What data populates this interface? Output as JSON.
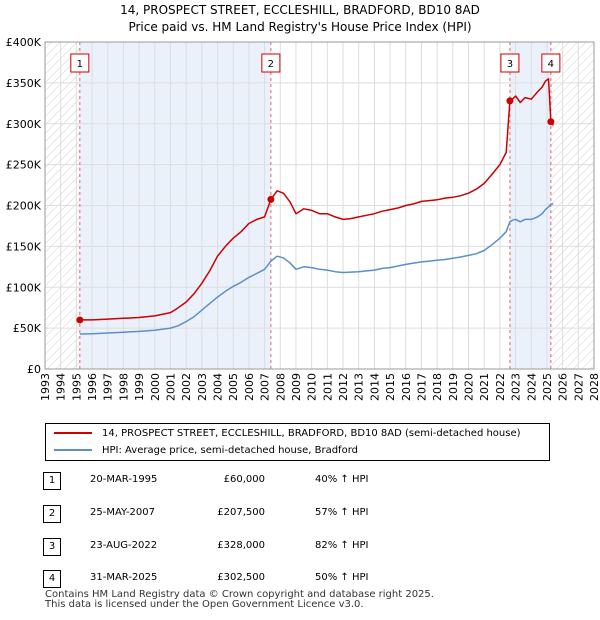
{
  "chart_data": {
    "type": "line",
    "title_line1": "14, PROSPECT STREET, ECCLESHILL, BRADFORD, BD10 8AD",
    "title_line2": "Price paid vs. HM Land Registry's House Price Index (HPI)",
    "xlim": [
      1993,
      2028
    ],
    "ylim": [
      0,
      400000
    ],
    "x_ticks": [
      1993,
      1994,
      1995,
      1996,
      1997,
      1998,
      1999,
      2000,
      2001,
      2002,
      2003,
      2004,
      2005,
      2006,
      2007,
      2008,
      2009,
      2010,
      2011,
      2012,
      2013,
      2014,
      2015,
      2016,
      2017,
      2018,
      2019,
      2020,
      2021,
      2022,
      2023,
      2024,
      2025,
      2026,
      2027,
      2028
    ],
    "y_ticks": [
      {
        "value": 0,
        "label": "£0"
      },
      {
        "value": 50000,
        "label": "£50K"
      },
      {
        "value": 100000,
        "label": "£100K"
      },
      {
        "value": 150000,
        "label": "£150K"
      },
      {
        "value": 200000,
        "label": "£200K"
      },
      {
        "value": 250000,
        "label": "£250K"
      },
      {
        "value": 300000,
        "label": "£300K"
      },
      {
        "value": 350000,
        "label": "£350K"
      },
      {
        "value": 400000,
        "label": "£400K"
      }
    ],
    "shaded_periods": [
      [
        1995.22,
        2007.4
      ],
      [
        2022.64,
        2025.25
      ]
    ],
    "hatched_regions": [
      [
        1993,
        1995.22
      ],
      [
        2025.25,
        2028
      ]
    ],
    "series": [
      {
        "name": "14, PROSPECT STREET, ECCLESHILL, BRADFORD, BD10 8AD (semi-detached house)",
        "color": "#cc0000",
        "x": [
          1995.22,
          1996,
          1997,
          1998,
          1999,
          2000,
          2001,
          2001.5,
          2002,
          2002.5,
          2003,
          2003.5,
          2004,
          2004.5,
          2005,
          2005.5,
          2006,
          2006.5,
          2007,
          2007.4,
          2007.8,
          2008.2,
          2008.6,
          2009.0,
          2009.5,
          2010,
          2010.5,
          2011,
          2011.5,
          2012,
          2012.5,
          2013,
          2013.5,
          2014,
          2014.5,
          2015,
          2015.5,
          2016,
          2016.5,
          2017,
          2017.5,
          2018,
          2018.5,
          2019,
          2019.5,
          2020,
          2020.5,
          2021,
          2021.5,
          2022,
          2022.4,
          2022.64,
          2022.8,
          2023.0,
          2023.3,
          2023.6,
          2024.0,
          2024.4,
          2024.7,
          2024.9,
          2025.1,
          2025.25,
          2025.4
        ],
        "values": [
          60000,
          60000,
          61000,
          62000,
          63000,
          65000,
          69000,
          75000,
          82000,
          92000,
          105000,
          120000,
          138000,
          150000,
          160000,
          168000,
          178000,
          183000,
          186000,
          207500,
          218000,
          215000,
          205000,
          190000,
          196000,
          194000,
          190000,
          190000,
          186000,
          183000,
          184000,
          186000,
          188000,
          190000,
          193000,
          195000,
          197000,
          200000,
          202000,
          205000,
          206000,
          207000,
          209000,
          210000,
          212000,
          215000,
          220000,
          227000,
          238000,
          250000,
          265000,
          328000,
          330000,
          334000,
          326000,
          332000,
          330000,
          339000,
          345000,
          352000,
          355000,
          302500,
          298000
        ]
      },
      {
        "name": "HPI: Average price, semi-detached house, Bradford",
        "color": "#5b8fc7",
        "x": [
          1995.22,
          1996,
          1997,
          1998,
          1999,
          2000,
          2001,
          2001.5,
          2002,
          2002.5,
          2003,
          2003.5,
          2004,
          2004.5,
          2005,
          2005.5,
          2006,
          2006.5,
          2007,
          2007.4,
          2007.8,
          2008.2,
          2008.6,
          2009.0,
          2009.5,
          2010,
          2010.5,
          2011,
          2011.5,
          2012,
          2012.5,
          2013,
          2013.5,
          2014,
          2014.5,
          2015,
          2015.5,
          2016,
          2016.5,
          2017,
          2017.5,
          2018,
          2018.5,
          2019,
          2019.5,
          2020,
          2020.5,
          2021,
          2021.5,
          2022,
          2022.4,
          2022.64,
          2022.8,
          2023.0,
          2023.3,
          2023.6,
          2024.0,
          2024.4,
          2024.7,
          2024.9,
          2025.1,
          2025.25,
          2025.4
        ],
        "values": [
          42800,
          43000,
          44000,
          45000,
          46000,
          47500,
          50000,
          53000,
          58000,
          64000,
          72000,
          80000,
          88000,
          95000,
          101000,
          106000,
          112000,
          117000,
          122000,
          132000,
          138000,
          136000,
          130000,
          122000,
          125000,
          124000,
          122000,
          121000,
          119000,
          118000,
          118500,
          119000,
          120000,
          121000,
          123000,
          124000,
          126000,
          128000,
          129500,
          131000,
          132000,
          133000,
          134000,
          135500,
          137000,
          139000,
          141000,
          145000,
          152000,
          160000,
          168000,
          180000,
          182000,
          183000,
          180000,
          183000,
          183000,
          186000,
          190000,
          195000,
          198000,
          201700,
          202000
        ]
      }
    ],
    "sales": [
      {
        "n": "1",
        "x": 1995.22,
        "value": 60000
      },
      {
        "n": "2",
        "x": 2007.4,
        "value": 207500
      },
      {
        "n": "3",
        "x": 2022.64,
        "value": 328000
      },
      {
        "n": "4",
        "x": 2025.25,
        "value": 302500
      }
    ]
  },
  "legend": {
    "property_label": "14, PROSPECT STREET, ECCLESHILL, BRADFORD, BD10 8AD (semi-detached house)",
    "hpi_label": "HPI: Average price, semi-detached house, Bradford",
    "property_color": "#cc0000",
    "hpi_color": "#5b8fc7"
  },
  "table": [
    {
      "n": "1",
      "date": "20-MAR-1995",
      "price": "£60,000",
      "hpi": "40% ↑ HPI"
    },
    {
      "n": "2",
      "date": "25-MAY-2007",
      "price": "£207,500",
      "hpi": "57% ↑ HPI"
    },
    {
      "n": "3",
      "date": "23-AUG-2022",
      "price": "£328,000",
      "hpi": "82% ↑ HPI"
    },
    {
      "n": "4",
      "date": "31-MAR-2025",
      "price": "£302,500",
      "hpi": "50% ↑ HPI"
    }
  ],
  "footer": {
    "line1": "Contains HM Land Registry data © Crown copyright and database right 2025.",
    "line2": "This data is licensed under the Open Government Licence v3.0."
  }
}
